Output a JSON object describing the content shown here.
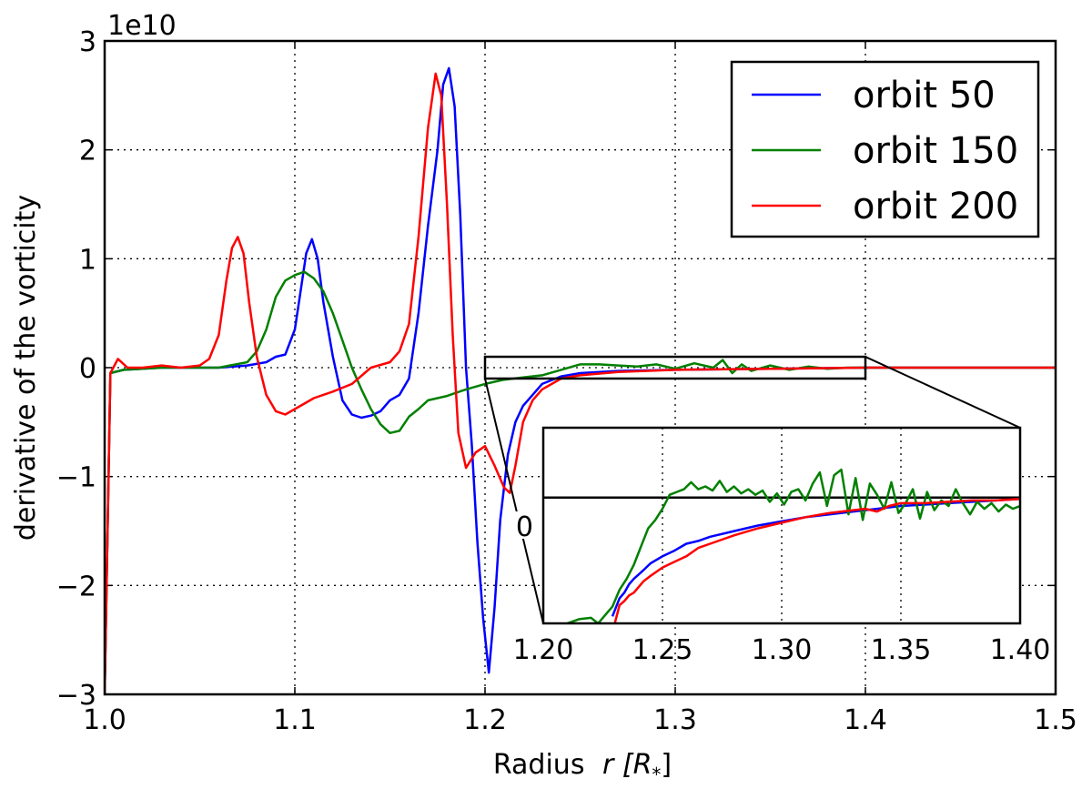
{
  "chart_data": {
    "type": "line",
    "xlabel": "Radius",
    "xlabel_math": "r [R",
    "xlabel_sub": "*",
    "xlabel_close": "]",
    "ylabel": "derivative of the vorticity",
    "offset_text": "1e10",
    "xlim": [
      1.0,
      1.5
    ],
    "ylim": [
      -3,
      3
    ],
    "xticks": [
      "1.0",
      "1.1",
      "1.2",
      "1.3",
      "1.4",
      "1.5"
    ],
    "yticks": [
      "−3",
      "−2",
      "−1",
      "0",
      "1",
      "2",
      "3"
    ],
    "grid": true,
    "legend_position": "top-right",
    "series": [
      {
        "name": "orbit 50",
        "color": "#0000ff",
        "x": [
          1.0,
          1.003,
          1.01,
          1.03,
          1.06,
          1.075,
          1.085,
          1.09,
          1.095,
          1.1,
          1.103,
          1.106,
          1.109,
          1.112,
          1.115,
          1.12,
          1.125,
          1.13,
          1.135,
          1.14,
          1.145,
          1.15,
          1.155,
          1.16,
          1.165,
          1.17,
          1.175,
          1.178,
          1.181,
          1.184,
          1.187,
          1.19,
          1.193,
          1.196,
          1.199,
          1.202,
          1.205,
          1.208,
          1.212,
          1.216,
          1.22,
          1.225,
          1.23,
          1.24,
          1.25,
          1.27,
          1.3,
          1.35,
          1.4,
          1.45,
          1.5
        ],
        "y": [
          -3.0,
          -0.05,
          -0.02,
          0.0,
          0.0,
          0.02,
          0.05,
          0.1,
          0.12,
          0.35,
          0.7,
          1.05,
          1.18,
          1.0,
          0.6,
          0.1,
          -0.3,
          -0.43,
          -0.46,
          -0.44,
          -0.4,
          -0.3,
          -0.25,
          -0.1,
          0.5,
          1.3,
          2.0,
          2.6,
          2.75,
          2.4,
          1.4,
          0.0,
          -0.7,
          -1.6,
          -2.3,
          -2.8,
          -2.2,
          -1.4,
          -0.8,
          -0.5,
          -0.35,
          -0.25,
          -0.15,
          -0.08,
          -0.05,
          -0.03,
          -0.02,
          -0.01,
          0.0,
          0.0,
          0.0
        ]
      },
      {
        "name": "orbit 150",
        "color": "#008000",
        "x": [
          1.0,
          1.003,
          1.01,
          1.03,
          1.06,
          1.075,
          1.08,
          1.085,
          1.09,
          1.095,
          1.1,
          1.105,
          1.11,
          1.115,
          1.12,
          1.125,
          1.13,
          1.135,
          1.14,
          1.145,
          1.15,
          1.155,
          1.16,
          1.165,
          1.17,
          1.18,
          1.19,
          1.2,
          1.21,
          1.22,
          1.23,
          1.24,
          1.25,
          1.26,
          1.27,
          1.28,
          1.29,
          1.3,
          1.31,
          1.32,
          1.325,
          1.33,
          1.335,
          1.34,
          1.35,
          1.36,
          1.37,
          1.38,
          1.39,
          1.4,
          1.45,
          1.5
        ],
        "y": [
          -3.0,
          -0.05,
          -0.02,
          0.0,
          0.0,
          0.05,
          0.15,
          0.35,
          0.65,
          0.8,
          0.85,
          0.88,
          0.82,
          0.7,
          0.5,
          0.25,
          0.0,
          -0.2,
          -0.38,
          -0.52,
          -0.6,
          -0.58,
          -0.45,
          -0.38,
          -0.3,
          -0.26,
          -0.2,
          -0.15,
          -0.11,
          -0.09,
          -0.07,
          -0.02,
          0.03,
          0.03,
          0.02,
          0.01,
          0.03,
          -0.01,
          0.04,
          0.0,
          0.07,
          -0.05,
          0.03,
          -0.03,
          0.02,
          -0.02,
          0.01,
          -0.01,
          0.0,
          0.0,
          0.0,
          0.0
        ]
      },
      {
        "name": "orbit 200",
        "color": "#ff0000",
        "x": [
          1.0,
          1.003,
          1.007,
          1.012,
          1.02,
          1.03,
          1.04,
          1.05,
          1.055,
          1.06,
          1.064,
          1.067,
          1.07,
          1.073,
          1.076,
          1.08,
          1.085,
          1.09,
          1.095,
          1.1,
          1.11,
          1.12,
          1.13,
          1.14,
          1.15,
          1.155,
          1.16,
          1.165,
          1.17,
          1.174,
          1.177,
          1.18,
          1.183,
          1.186,
          1.19,
          1.195,
          1.2,
          1.205,
          1.21,
          1.213,
          1.216,
          1.22,
          1.225,
          1.23,
          1.24,
          1.25,
          1.27,
          1.3,
          1.35,
          1.4,
          1.45,
          1.5
        ],
        "y": [
          -3.0,
          -0.05,
          0.08,
          0.0,
          0.0,
          0.02,
          0.0,
          0.02,
          0.08,
          0.3,
          0.8,
          1.1,
          1.2,
          1.05,
          0.6,
          0.1,
          -0.25,
          -0.4,
          -0.43,
          -0.38,
          -0.28,
          -0.22,
          -0.15,
          0.0,
          0.05,
          0.15,
          0.4,
          1.2,
          2.2,
          2.7,
          2.5,
          1.5,
          0.3,
          -0.6,
          -0.92,
          -0.78,
          -0.72,
          -0.9,
          -1.1,
          -1.15,
          -0.9,
          -0.5,
          -0.3,
          -0.2,
          -0.1,
          -0.07,
          -0.04,
          -0.02,
          -0.01,
          0.0,
          0.0,
          0.0
        ]
      }
    ],
    "inset": {
      "xlim": [
        1.2,
        1.4
      ],
      "ylim": [
        -0.09,
        0.05
      ],
      "xticks": [
        "1.20",
        "1.25",
        "1.30",
        "1.35",
        "1.40"
      ],
      "zero_label": "0",
      "series": [
        {
          "name": "orbit 50",
          "color": "#0000ff",
          "x": [
            1.229,
            1.232,
            1.234,
            1.236,
            1.238,
            1.24,
            1.242,
            1.245,
            1.25,
            1.255,
            1.26,
            1.265,
            1.27,
            1.28,
            1.29,
            1.3,
            1.31,
            1.32,
            1.33,
            1.34,
            1.35,
            1.36,
            1.37,
            1.38,
            1.39,
            1.4
          ],
          "y": [
            -0.085,
            -0.072,
            -0.068,
            -0.062,
            -0.058,
            -0.055,
            -0.052,
            -0.047,
            -0.042,
            -0.038,
            -0.033,
            -0.031,
            -0.028,
            -0.024,
            -0.02,
            -0.017,
            -0.014,
            -0.012,
            -0.01,
            -0.008,
            -0.006,
            -0.005,
            -0.004,
            -0.003,
            -0.002,
            -0.001
          ]
        },
        {
          "name": "orbit 150",
          "color": "#008000",
          "x": [
            1.21,
            1.215,
            1.22,
            1.223,
            1.226,
            1.229,
            1.232,
            1.235,
            1.238,
            1.241,
            1.244,
            1.247,
            1.25,
            1.253,
            1.256,
            1.259,
            1.262,
            1.265,
            1.268,
            1.271,
            1.274,
            1.277,
            1.28,
            1.283,
            1.286,
            1.289,
            1.292,
            1.295,
            1.298,
            1.301,
            1.304,
            1.307,
            1.31,
            1.313,
            1.316,
            1.319,
            1.322,
            1.325,
            1.328,
            1.331,
            1.334,
            1.337,
            1.34,
            1.343,
            1.346,
            1.349,
            1.352,
            1.355,
            1.358,
            1.361,
            1.364,
            1.367,
            1.37,
            1.373,
            1.376,
            1.379,
            1.382,
            1.385,
            1.388,
            1.391,
            1.394,
            1.397,
            1.4
          ],
          "y": [
            -0.09,
            -0.087,
            -0.086,
            -0.09,
            -0.084,
            -0.078,
            -0.066,
            -0.058,
            -0.048,
            -0.035,
            -0.022,
            -0.016,
            -0.008,
            0.002,
            0.004,
            0.006,
            0.011,
            0.006,
            0.008,
            0.005,
            0.012,
            0.004,
            0.008,
            0.003,
            0.006,
            0.002,
            0.005,
            -0.003,
            0.003,
            -0.005,
            0.004,
            0.006,
            -0.002,
            0.01,
            0.018,
            -0.006,
            0.016,
            0.02,
            -0.012,
            0.014,
            -0.016,
            0.01,
            0.002,
            -0.008,
            0.011,
            -0.011,
            -0.004,
            0.006,
            -0.015,
            0.004,
            -0.009,
            -0.002,
            -0.006,
            0.006,
            -0.004,
            -0.012,
            -0.003,
            -0.008,
            -0.004,
            -0.01,
            -0.005,
            -0.008,
            -0.006
          ]
        },
        {
          "name": "orbit 200",
          "color": "#ff0000",
          "x": [
            1.23,
            1.232,
            1.234,
            1.236,
            1.238,
            1.24,
            1.242,
            1.245,
            1.25,
            1.255,
            1.26,
            1.265,
            1.27,
            1.28,
            1.29,
            1.3,
            1.31,
            1.32,
            1.33,
            1.335,
            1.34,
            1.345,
            1.35,
            1.36,
            1.37,
            1.38,
            1.39,
            1.4
          ],
          "y": [
            -0.09,
            -0.077,
            -0.074,
            -0.07,
            -0.068,
            -0.064,
            -0.06,
            -0.056,
            -0.05,
            -0.046,
            -0.042,
            -0.036,
            -0.033,
            -0.027,
            -0.022,
            -0.018,
            -0.014,
            -0.011,
            -0.009,
            -0.008,
            -0.01,
            -0.006,
            -0.004,
            -0.004,
            -0.003,
            -0.002,
            -0.002,
            -0.001
          ]
        }
      ]
    }
  }
}
